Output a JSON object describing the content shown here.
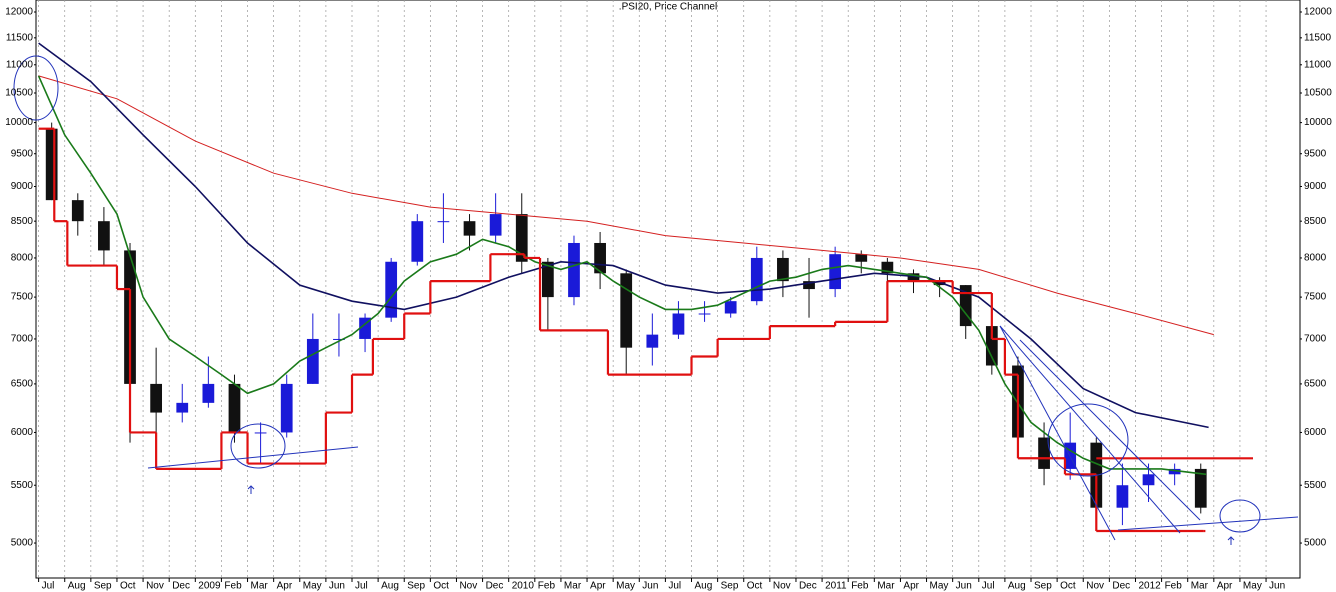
{
  "chart_data": {
    "type": "candlestick",
    "title": ".PSI20, Price Channel",
    "log": true,
    "grid": true,
    "xlim": [
      -0.1,
      48.3
    ],
    "ylim": [
      4720,
      12240
    ],
    "yticks": [
      5000,
      5500,
      6000,
      6500,
      7000,
      7500,
      8000,
      8500,
      9000,
      9500,
      10000,
      10500,
      11000,
      11500,
      12000
    ],
    "xticks": [
      {
        "value": 0,
        "label": "Jul"
      },
      {
        "value": 1,
        "label": "Aug"
      },
      {
        "value": 2,
        "label": "Sep"
      },
      {
        "value": 3,
        "label": "Oct"
      },
      {
        "value": 4,
        "label": "Nov"
      },
      {
        "value": 5,
        "label": "Dec"
      },
      {
        "value": 6,
        "label": "2009"
      },
      {
        "value": 7,
        "label": "Feb"
      },
      {
        "value": 8,
        "label": "Mar"
      },
      {
        "value": 9,
        "label": "Apr"
      },
      {
        "value": 10,
        "label": "May"
      },
      {
        "value": 11,
        "label": "Jun"
      },
      {
        "value": 12,
        "label": "Jul"
      },
      {
        "value": 13,
        "label": "Aug"
      },
      {
        "value": 14,
        "label": "Sep"
      },
      {
        "value": 15,
        "label": "Oct"
      },
      {
        "value": 16,
        "label": "Nov"
      },
      {
        "value": 17,
        "label": "Dec"
      },
      {
        "value": 18,
        "label": "2010"
      },
      {
        "value": 19,
        "label": "Feb"
      },
      {
        "value": 20,
        "label": "Mar"
      },
      {
        "value": 21,
        "label": "Apr"
      },
      {
        "value": 22,
        "label": "May"
      },
      {
        "value": 23,
        "label": "Jun"
      },
      {
        "value": 24,
        "label": "Jul"
      },
      {
        "value": 25,
        "label": "Aug"
      },
      {
        "value": 26,
        "label": "Sep"
      },
      {
        "value": 27,
        "label": "Oct"
      },
      {
        "value": 28,
        "label": "Nov"
      },
      {
        "value": 29,
        "label": "Dec"
      },
      {
        "value": 30,
        "label": "2011"
      },
      {
        "value": 31,
        "label": "Feb"
      },
      {
        "value": 32,
        "label": "Mar"
      },
      {
        "value": 33,
        "label": "Apr"
      },
      {
        "value": 34,
        "label": "May"
      },
      {
        "value": 35,
        "label": "Jun"
      },
      {
        "value": 36,
        "label": "Jul"
      },
      {
        "value": 37,
        "label": "Aug"
      },
      {
        "value": 38,
        "label": "Sep"
      },
      {
        "value": 39,
        "label": "Oct"
      },
      {
        "value": 40,
        "label": "Nov"
      },
      {
        "value": 41,
        "label": "Dec"
      },
      {
        "value": 42,
        "label": "2012"
      },
      {
        "value": 43,
        "label": "Feb"
      },
      {
        "value": 44,
        "label": "Mar"
      },
      {
        "value": 45,
        "label": "Apr"
      },
      {
        "value": 46,
        "label": "May"
      },
      {
        "value": 47,
        "label": "Jun"
      }
    ],
    "candles": {
      "up_color": "#1a1ad8",
      "down_color": "#111111",
      "x": [
        0.5,
        1.5,
        2.5,
        3.5,
        4.5,
        5.5,
        6.5,
        7.5,
        8.5,
        9.5,
        10.5,
        11.5,
        12.5,
        13.5,
        14.5,
        15.5,
        16.5,
        17.5,
        18.5,
        19.5,
        20.5,
        21.5,
        22.5,
        23.5,
        24.5,
        25.5,
        26.5,
        27.5,
        28.5,
        29.5,
        30.5,
        31.5,
        32.5,
        33.5,
        34.5,
        35.5,
        36.5,
        37.5,
        38.5,
        39.5,
        40.5,
        41.5,
        42.5,
        43.5,
        44.5
      ],
      "open": [
        9900,
        8800,
        8500,
        8100,
        6500,
        6200,
        6300,
        6500,
        6000,
        6000,
        6500,
        7000,
        7000,
        7250,
        7950,
        8500,
        8500,
        8300,
        8600,
        7950,
        7500,
        8200,
        7800,
        6900,
        7050,
        7300,
        7300,
        7450,
        8000,
        7700,
        7600,
        8050,
        7950,
        7800,
        7700,
        7650,
        7150,
        6700,
        5950,
        5650,
        5900,
        5300,
        5500,
        5600,
        5650
      ],
      "high": [
        10000,
        8900,
        8700,
        8200,
        6900,
        6500,
        6800,
        6600,
        6100,
        6600,
        7300,
        7300,
        7300,
        8000,
        8600,
        8900,
        8600,
        8900,
        8900,
        8000,
        8300,
        8350,
        7850,
        7300,
        7450,
        7450,
        7500,
        8150,
        8100,
        8000,
        8150,
        8100,
        8000,
        7850,
        7750,
        7650,
        7250,
        6800,
        6100,
        6200,
        5950,
        5700,
        5700,
        5700,
        5700
      ],
      "low": [
        8800,
        8300,
        7900,
        5900,
        5800,
        6100,
        6250,
        5900,
        5700,
        5950,
        6500,
        6800,
        6850,
        7200,
        7900,
        8200,
        8100,
        8200,
        7800,
        7100,
        7400,
        7600,
        6600,
        6700,
        7000,
        7200,
        7250,
        7400,
        7500,
        7250,
        7500,
        7800,
        7600,
        7550,
        7500,
        7000,
        6600,
        5750,
        5500,
        5550,
        5100,
        5150,
        5350,
        5500,
        5250
      ],
      "close": [
        8800,
        8500,
        8100,
        6500,
        6200,
        6300,
        6500,
        6000,
        6000,
        6500,
        7000,
        7000,
        7250,
        7950,
        8500,
        8500,
        8300,
        8600,
        7950,
        7500,
        8200,
        7800,
        6900,
        7050,
        7300,
        7300,
        7450,
        8000,
        7700,
        7600,
        8050,
        7950,
        7800,
        7700,
        7650,
        7150,
        6700,
        5950,
        5650,
        5900,
        5300,
        5500,
        5600,
        5650,
        5300
      ]
    },
    "series": [
      {
        "color": "#d42020",
        "width": 1,
        "x": [
          0,
          3,
          6,
          9,
          12,
          15,
          18,
          21,
          24,
          27,
          30,
          33,
          36,
          39,
          42,
          45
        ],
        "values": [
          10800,
          10400,
          9700,
          9200,
          8900,
          8700,
          8600,
          8500,
          8300,
          8200,
          8100,
          8000,
          7850,
          7550,
          7300,
          7050
        ]
      },
      {
        "color": "#101060",
        "width": 1.6,
        "x": [
          0,
          2,
          4,
          6,
          8,
          10,
          12,
          14,
          16,
          18,
          20,
          22,
          24,
          26,
          28,
          30,
          32,
          34,
          36,
          38,
          40,
          42,
          44.8
        ],
        "values": [
          11400,
          10700,
          9800,
          9000,
          8200,
          7650,
          7450,
          7350,
          7500,
          7750,
          7950,
          7900,
          7650,
          7550,
          7600,
          7700,
          7800,
          7750,
          7500,
          7000,
          6450,
          6200,
          6050
        ]
      },
      {
        "color": "#1a7a1a",
        "width": 1.6,
        "x": [
          0,
          1,
          2,
          3,
          4,
          5,
          6,
          7,
          8,
          9,
          10,
          11,
          12,
          13,
          14,
          15,
          16,
          17,
          18,
          19,
          20,
          21,
          22,
          23,
          24,
          25,
          26,
          27,
          28,
          29,
          30,
          31,
          32,
          33,
          34,
          35,
          36,
          37,
          38,
          39,
          40,
          41,
          42,
          43,
          44.7
        ],
        "values": [
          10800,
          9800,
          9200,
          8600,
          7500,
          7000,
          6800,
          6600,
          6400,
          6500,
          6750,
          6900,
          7050,
          7300,
          7700,
          7950,
          8050,
          8250,
          8150,
          7950,
          7850,
          7950,
          7700,
          7500,
          7350,
          7350,
          7400,
          7550,
          7700,
          7750,
          7850,
          7900,
          7850,
          7800,
          7750,
          7500,
          7100,
          6500,
          6100,
          5900,
          5750,
          5650,
          5650,
          5650,
          5600
        ]
      },
      {
        "color": "#e01010",
        "width": 2.2,
        "step": true,
        "x": [
          0,
          0.6,
          1.1,
          3.0,
          3.5,
          4.5,
          7.0,
          8.0,
          11.0,
          12.0,
          12.8,
          14.0,
          15.0,
          17.3,
          18.6,
          19.2,
          21.8,
          25.0,
          26.0,
          28.0,
          30.5,
          32.5,
          35.0,
          36.5,
          37.0,
          37.5,
          39.3,
          40.5,
          44.6
        ],
        "values": [
          9900,
          8500,
          7900,
          7600,
          6000,
          5650,
          6000,
          5700,
          6200,
          6600,
          7000,
          7300,
          7700,
          8050,
          8000,
          7100,
          6600,
          6800,
          7000,
          7150,
          7200,
          7700,
          7550,
          7000,
          6600,
          5750,
          5600,
          5100,
          5100
        ]
      },
      {
        "color": "#e01010",
        "width": 2.2,
        "x": [
          40.5,
          46.5
        ],
        "values": [
          5750,
          5750
        ]
      }
    ]
  }
}
